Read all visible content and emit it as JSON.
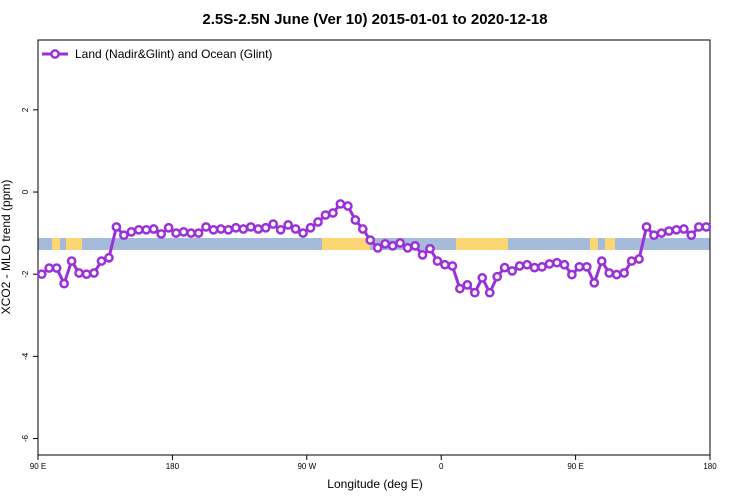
{
  "chart_data": {
    "type": "line",
    "title": "2.5S-2.5N June (Ver 10)   2015-01-01 to 2020-12-18",
    "xlabel": "Longitude (deg E)",
    "ylabel": "XCO2 - MLO trend (ppm)",
    "xlim": [
      90,
      540
    ],
    "ylim": [
      -6.4,
      3.7
    ],
    "xticks": [
      {
        "value": 90,
        "label": "90 E"
      },
      {
        "value": 180,
        "label": "180"
      },
      {
        "value": 270,
        "label": "90 W"
      },
      {
        "value": 360,
        "label": "0"
      },
      {
        "value": 450,
        "label": "90 E"
      },
      {
        "value": 540,
        "label": "180"
      }
    ],
    "yticks": [
      -6,
      -4,
      -2,
      0,
      2
    ],
    "legend": "top-left",
    "x": [
      92.5,
      97.5,
      102.5,
      107.5,
      112.5,
      117.5,
      122.5,
      127.5,
      132.5,
      137.5,
      142.5,
      147.5,
      152.5,
      157.5,
      162.5,
      167.5,
      172.5,
      177.5,
      182.5,
      187.5,
      192.5,
      197.5,
      202.5,
      207.5,
      212.5,
      217.5,
      222.5,
      227.5,
      232.5,
      237.5,
      242.5,
      247.5,
      252.5,
      257.5,
      262.5,
      267.5,
      272.5,
      277.5,
      282.5,
      287.5,
      292.5,
      297.5,
      302.5,
      307.5,
      312.5,
      317.5,
      322.5,
      327.5,
      332.5,
      337.5,
      342.5,
      347.5,
      352.5,
      357.5,
      362.5,
      367.5,
      372.5,
      377.5,
      382.5,
      387.5,
      392.5,
      397.5,
      402.5,
      407.5,
      412.5,
      417.5,
      422.5,
      427.5,
      432.5,
      437.5,
      442.5,
      447.5,
      452.5,
      457.5,
      462.5,
      467.5,
      472.5,
      477.5,
      482.5,
      487.5,
      492.5,
      497.5,
      502.5,
      507.5,
      512.5,
      517.5,
      522.5,
      527.5,
      532.5,
      537.5
    ],
    "series": [
      {
        "name": "Land (Nadir&Glint) and Ocean (Glint)",
        "color": "#9b30d9",
        "values": [
          -2.0,
          -1.85,
          -1.85,
          -2.23,
          -1.68,
          -1.97,
          -2.0,
          -1.97,
          -1.68,
          -1.6,
          -0.85,
          -1.05,
          -0.97,
          -0.92,
          -0.92,
          -0.9,
          -1.02,
          -0.87,
          -1.0,
          -0.97,
          -1.0,
          -1.0,
          -0.85,
          -0.92,
          -0.9,
          -0.92,
          -0.87,
          -0.9,
          -0.85,
          -0.9,
          -0.87,
          -0.78,
          -0.92,
          -0.8,
          -0.9,
          -1.0,
          -0.87,
          -0.73,
          -0.56,
          -0.51,
          -0.29,
          -0.34,
          -0.68,
          -0.9,
          -1.17,
          -1.36,
          -1.26,
          -1.31,
          -1.24,
          -1.36,
          -1.31,
          -1.53,
          -1.38,
          -1.68,
          -1.77,
          -1.8,
          -2.35,
          -2.26,
          -2.45,
          -2.09,
          -2.45,
          -2.06,
          -1.84,
          -1.92,
          -1.8,
          -1.77,
          -1.84,
          -1.82,
          -1.75,
          -1.72,
          -1.77,
          -2.01,
          -1.82,
          -1.82,
          -2.21,
          -1.68,
          -1.97,
          -2.01,
          -1.97,
          -1.68,
          -1.63,
          -0.85,
          -1.05,
          -1.0,
          -0.95,
          -0.92,
          -0.9,
          -1.05,
          -0.85,
          -0.85
        ]
      }
    ]
  }
}
